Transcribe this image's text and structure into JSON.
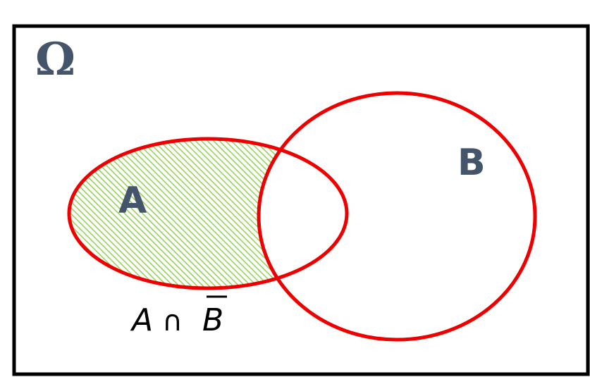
{
  "universe": {
    "label": "Ω"
  },
  "sets": [
    {
      "name": "set-a",
      "label": "A"
    },
    {
      "name": "set-b",
      "label": "B"
    }
  ],
  "region": {
    "description_label_parts": {
      "left": "A",
      "op": "∩",
      "right": "B"
    },
    "complemented": "right"
  },
  "colors": {
    "border": "#000000",
    "circle_stroke": "#ee0000",
    "label_text": "#44546a",
    "hatch": "#92d050",
    "formula_text": "#000000"
  }
}
